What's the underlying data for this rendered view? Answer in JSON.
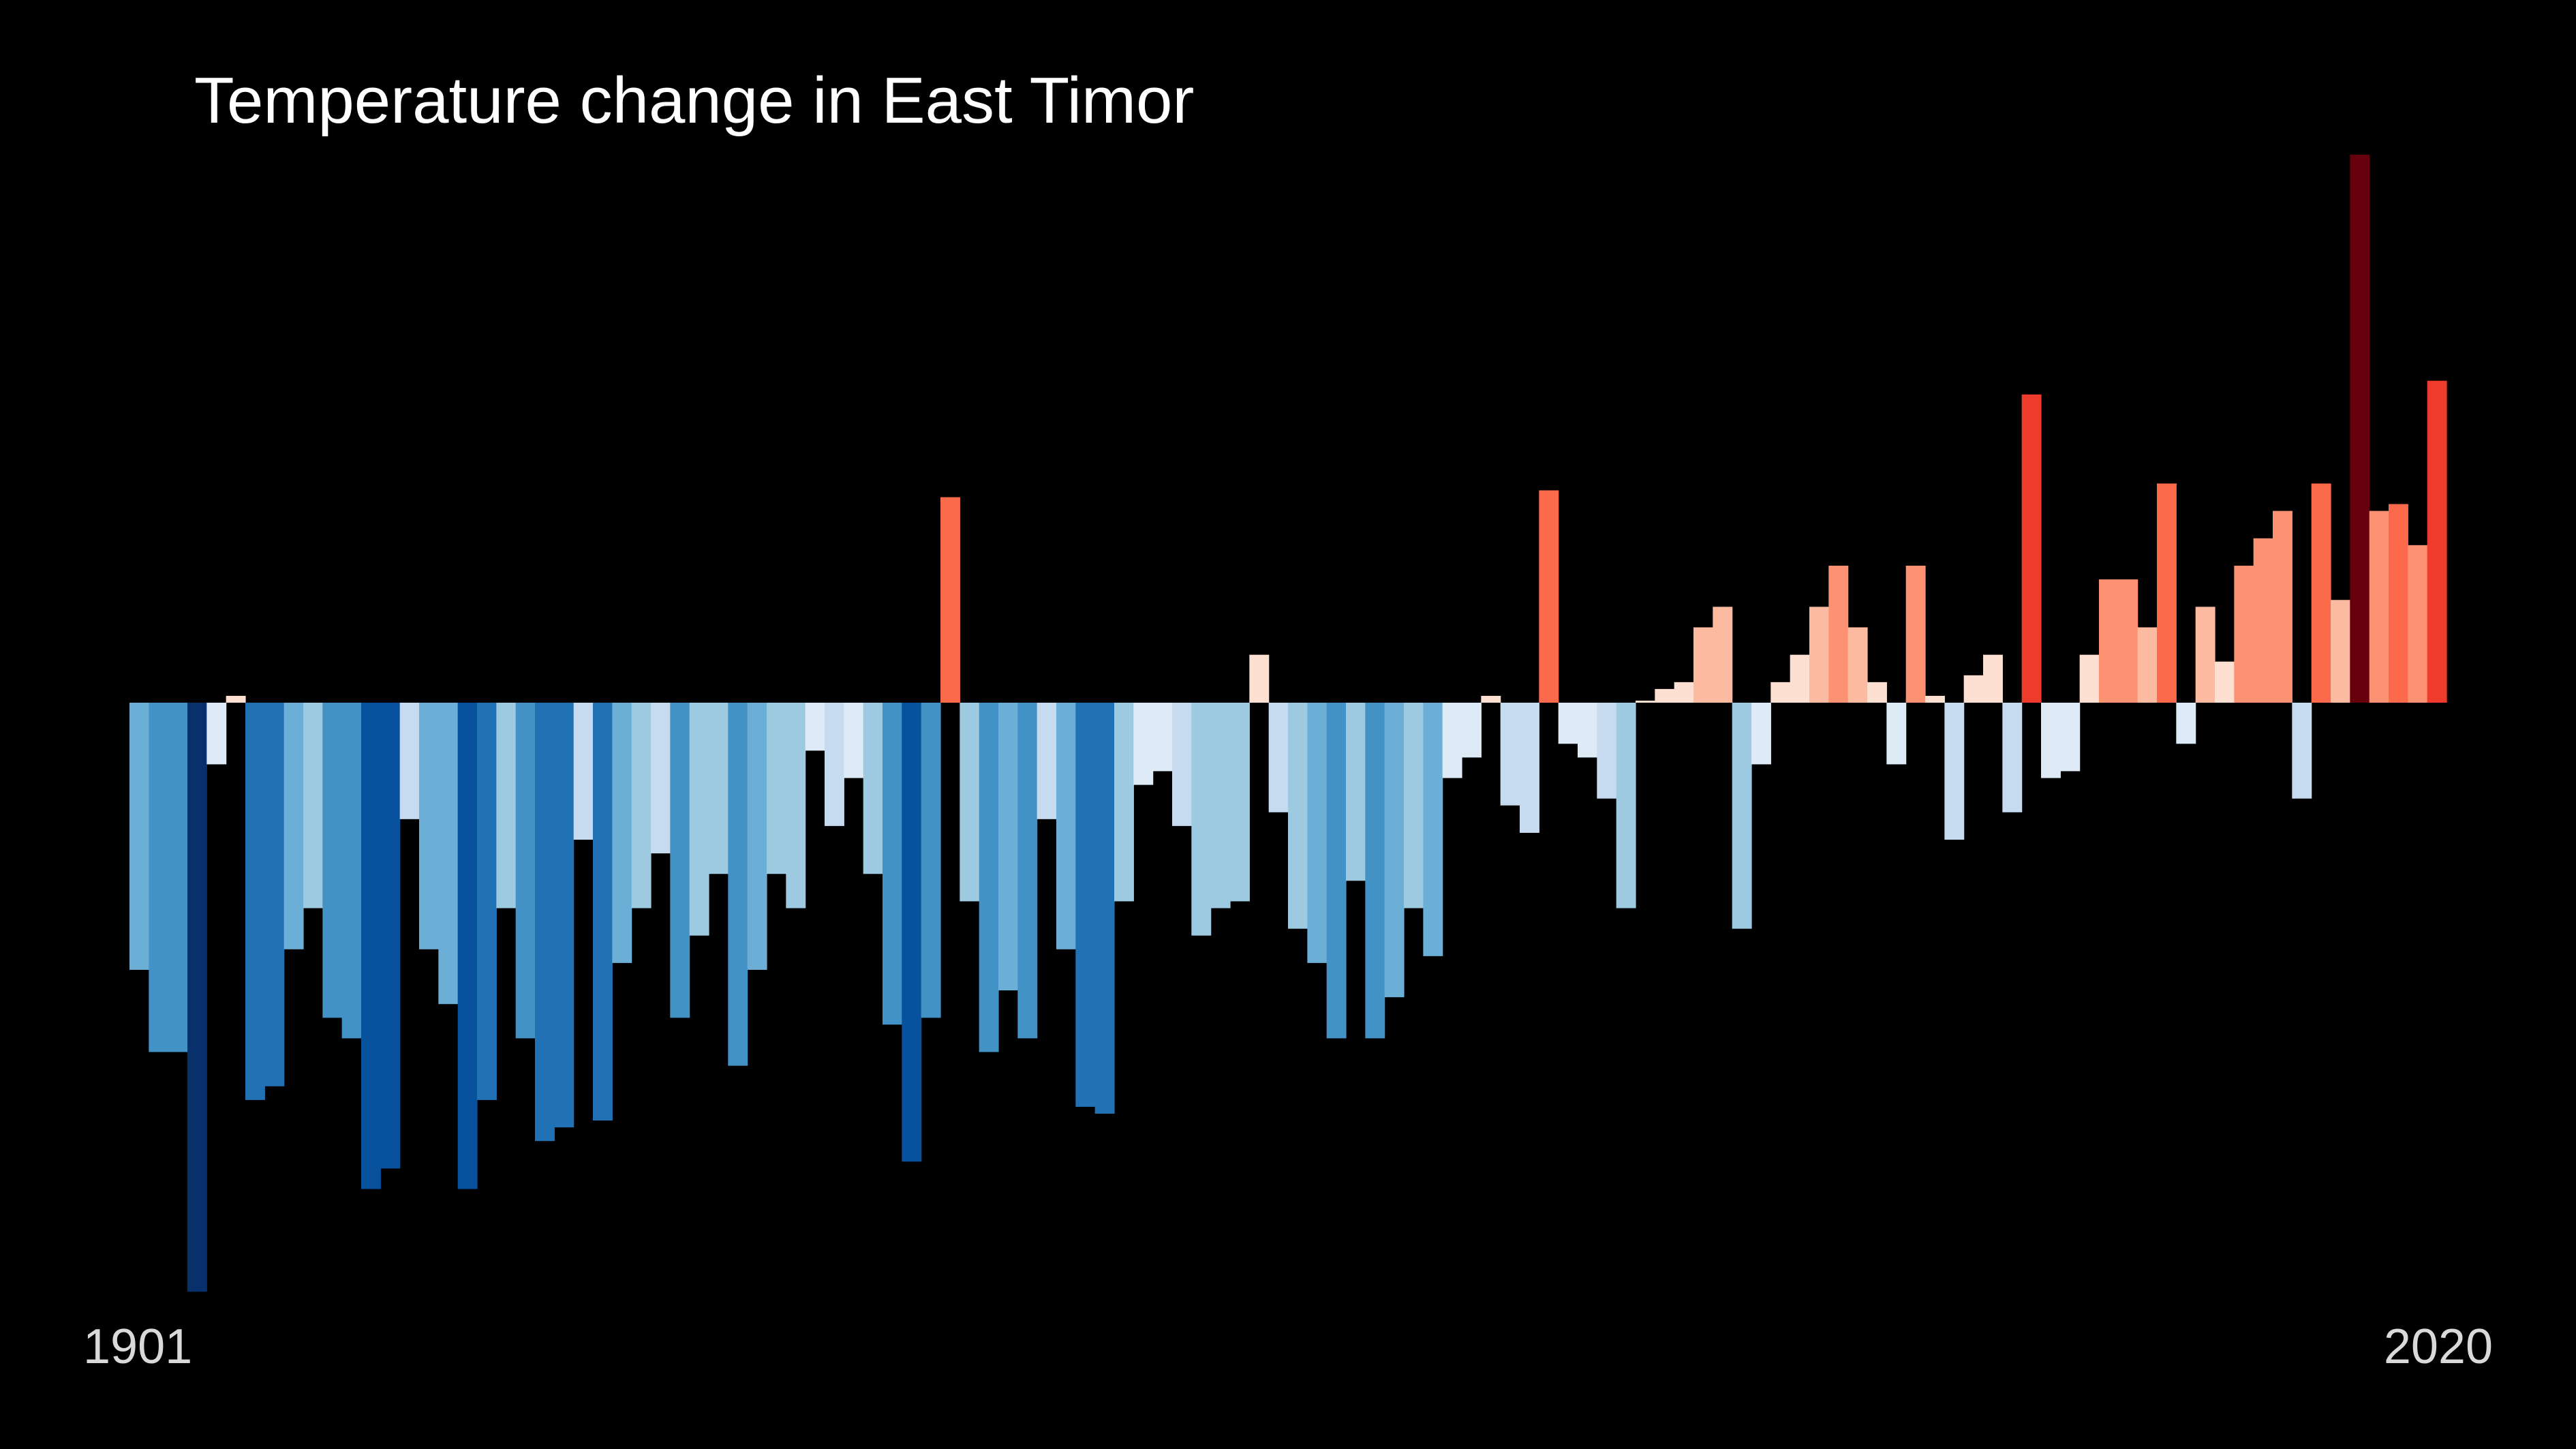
{
  "chart_data": {
    "type": "bar",
    "title": "Temperature change in East Timor",
    "x_start_label": "1901",
    "x_end_label": "2020",
    "categories": [
      1901,
      1902,
      1903,
      1904,
      1905,
      1906,
      1907,
      1908,
      1909,
      1910,
      1911,
      1912,
      1913,
      1914,
      1915,
      1916,
      1917,
      1918,
      1919,
      1920,
      1921,
      1922,
      1923,
      1924,
      1925,
      1926,
      1927,
      1928,
      1929,
      1930,
      1931,
      1932,
      1933,
      1934,
      1935,
      1936,
      1937,
      1938,
      1939,
      1940,
      1941,
      1942,
      1943,
      1944,
      1945,
      1946,
      1947,
      1948,
      1949,
      1950,
      1951,
      1952,
      1953,
      1954,
      1955,
      1956,
      1957,
      1958,
      1959,
      1960,
      1961,
      1962,
      1963,
      1964,
      1965,
      1966,
      1967,
      1968,
      1969,
      1970,
      1971,
      1972,
      1973,
      1974,
      1975,
      1976,
      1977,
      1978,
      1979,
      1980,
      1981,
      1982,
      1983,
      1984,
      1985,
      1986,
      1987,
      1988,
      1989,
      1990,
      1991,
      1992,
      1993,
      1994,
      1995,
      1996,
      1997,
      1998,
      1999,
      2000,
      2001,
      2002,
      2003,
      2004,
      2005,
      2006,
      2007,
      2008,
      2009,
      2010,
      2011,
      2012,
      2013,
      2014,
      2015,
      2016,
      2017,
      2018,
      2019,
      2020
    ],
    "values": [
      -0.39,
      -0.51,
      -0.51,
      -0.86,
      -0.09,
      0.01,
      -0.58,
      -0.56,
      -0.36,
      -0.3,
      -0.46,
      -0.49,
      -0.71,
      -0.68,
      -0.17,
      -0.36,
      -0.44,
      -0.71,
      -0.58,
      -0.3,
      -0.49,
      -0.64,
      -0.62,
      -0.2,
      -0.61,
      -0.38,
      -0.3,
      -0.22,
      -0.46,
      -0.34,
      -0.25,
      -0.53,
      -0.39,
      -0.25,
      -0.3,
      -0.07,
      -0.18,
      -0.11,
      -0.25,
      -0.47,
      -0.67,
      -0.46,
      0.3,
      -0.29,
      -0.51,
      -0.42,
      -0.49,
      -0.17,
      -0.36,
      -0.59,
      -0.6,
      -0.29,
      -0.12,
      -0.1,
      -0.18,
      -0.34,
      -0.3,
      -0.29,
      0.07,
      -0.16,
      -0.33,
      -0.38,
      -0.49,
      -0.26,
      -0.49,
      -0.43,
      -0.3,
      -0.37,
      -0.11,
      -0.08,
      0.01,
      -0.15,
      -0.19,
      0.31,
      -0.06,
      -0.08,
      -0.14,
      -0.3,
      0.0,
      0.02,
      0.03,
      0.11,
      0.14,
      -0.33,
      -0.09,
      0.03,
      0.07,
      0.14,
      0.2,
      0.11,
      0.03,
      -0.09,
      0.2,
      0.01,
      -0.2,
      0.04,
      0.07,
      -0.16,
      0.45,
      -0.11,
      -0.1,
      0.07,
      0.18,
      0.18,
      0.11,
      0.32,
      -0.06,
      0.14,
      0.06,
      0.2,
      0.24,
      0.28,
      -0.14,
      0.32,
      0.15,
      0.8,
      0.28,
      0.29,
      0.23,
      0.47
    ],
    "colorscale": [
      "#08306b",
      "#08519c",
      "#2171b5",
      "#4292c6",
      "#6baed6",
      "#9ecae1",
      "#c6dbef",
      "#deebf7",
      "#fee0d2",
      "#fcbba1",
      "#fc9272",
      "#fb6a4a",
      "#ef3b2c",
      "#cb181d",
      "#a50f15",
      "#67000d"
    ],
    "ylim": [
      -0.86,
      0.8
    ],
    "background": "#000000"
  }
}
